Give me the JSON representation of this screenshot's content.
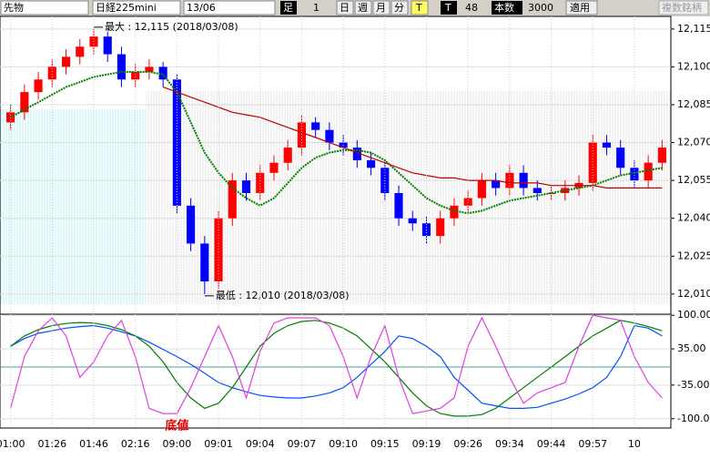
{
  "toolbar": {
    "market": "先物",
    "symbol": "日経225mini",
    "date": "13/06",
    "bar": "足",
    "interval": "1",
    "day": "日",
    "week": "週",
    "month": "月",
    "minute": "分",
    "tick": "T",
    "t2": "T",
    "count_value": "48",
    "count_label": "本数",
    "bars": "3000",
    "apply": "適用",
    "multi": "複数銘柄"
  },
  "chart_data": [
    {
      "type": "candlestick",
      "up_color": "#ff0000",
      "down_color": "#0000ff",
      "open": [
        12078,
        12082,
        12090,
        12095,
        12100,
        12104,
        12108,
        12112,
        12105,
        12095,
        12098,
        12100,
        12095,
        12045,
        12030,
        12015,
        12040,
        12055,
        12050,
        12058,
        12062,
        12068,
        12078,
        12075,
        12070,
        12068,
        12063,
        12060,
        12050,
        12040,
        12038,
        12033,
        12040,
        12045,
        12048,
        12055,
        12052,
        12058,
        12052,
        12050,
        12050,
        12052,
        12054,
        12070,
        12068,
        12060,
        12055,
        12062
      ],
      "high": [
        12085,
        12093,
        12098,
        12103,
        12107,
        12111,
        12115,
        12114,
        12108,
        12101,
        12103,
        12102,
        12097,
        12048,
        12033,
        12043,
        12058,
        12058,
        12061,
        12065,
        12071,
        12081,
        12080,
        12078,
        12073,
        12071,
        12066,
        12063,
        12053,
        12043,
        12041,
        12043,
        12048,
        12051,
        12058,
        12058,
        12061,
        12061,
        12055,
        12053,
        12055,
        12057,
        12073,
        12073,
        12071,
        12063,
        12065,
        12071
      ],
      "low": [
        12075,
        12079,
        12087,
        12092,
        12097,
        12101,
        12105,
        12102,
        12092,
        12092,
        12095,
        12092,
        12042,
        12027,
        12010,
        12012,
        12037,
        12047,
        12047,
        12055,
        12059,
        12065,
        12072,
        12067,
        12065,
        12060,
        12057,
        12047,
        12037,
        12035,
        12030,
        12030,
        12037,
        12042,
        12045,
        12049,
        12049,
        12049,
        12047,
        12047,
        12047,
        12049,
        12051,
        12065,
        12057,
        12052,
        12052,
        12059
      ],
      "close": [
        12082,
        12090,
        12095,
        12100,
        12104,
        12108,
        12112,
        12105,
        12095,
        12098,
        12100,
        12095,
        12045,
        12030,
        12015,
        12040,
        12055,
        12050,
        12058,
        12062,
        12068,
        12078,
        12075,
        12070,
        12068,
        12063,
        12060,
        12050,
        12040,
        12038,
        12033,
        12040,
        12045,
        12048,
        12055,
        12052,
        12058,
        12052,
        12050,
        12050,
        12052,
        12054,
        12070,
        12068,
        12060,
        12055,
        12062,
        12068
      ],
      "series": [
        {
          "color": "#008000",
          "values": [
            12080,
            12083,
            12086,
            12089,
            12092,
            12094,
            12096,
            12097,
            12098,
            12098,
            12098,
            12097,
            12090,
            12078,
            12066,
            12058,
            12052,
            12048,
            12045,
            12048,
            12054,
            12060,
            12064,
            12066,
            12067,
            12067,
            12066,
            12063,
            12058,
            12053,
            12048,
            12045,
            12043,
            12042,
            12043,
            12045,
            12047,
            12048,
            12049,
            12050,
            12051,
            12052,
            12053,
            12055,
            12057,
            12058,
            12059,
            12060
          ]
        },
        {
          "color": "#c00000",
          "values": [
            null,
            null,
            null,
            null,
            null,
            null,
            null,
            null,
            null,
            null,
            null,
            12092,
            12090,
            12088,
            12086,
            12084,
            12082,
            12081,
            12080,
            12078,
            12076,
            12074,
            12072,
            12070,
            12068,
            12066,
            12064,
            12062,
            12060,
            12058,
            12057,
            12056,
            12056,
            12055,
            12055,
            12055,
            12054,
            12054,
            12054,
            12053,
            12053,
            12053,
            12053,
            12052,
            12052,
            12052,
            12052,
            12052
          ]
        }
      ],
      "ylim": [
        12002,
        12120
      ],
      "yticks": [
        {
          "value": 12010,
          "label": "12,010"
        },
        {
          "value": 12025,
          "label": "12,025"
        },
        {
          "value": 12040,
          "label": "12,040"
        },
        {
          "value": 12055,
          "label": "12,055"
        },
        {
          "value": 12070,
          "label": "12,070"
        },
        {
          "value": 12085,
          "label": "12,085"
        },
        {
          "value": 12100,
          "label": "12,100"
        },
        {
          "value": 12115,
          "label": "12,115"
        }
      ],
      "max_label": "最大 : 12,115 (2018/03/08)",
      "min_label": "最低 : 12,010 (2018/03/08)"
    },
    {
      "type": "line",
      "categories": [
        "01:00",
        null,
        null,
        "01:26",
        null,
        null,
        "01:46",
        null,
        null,
        "02:16",
        null,
        null,
        "09:00",
        null,
        null,
        "09:01",
        null,
        null,
        "09:04",
        null,
        null,
        "09:07",
        null,
        null,
        "09:10",
        null,
        null,
        "09:15",
        null,
        null,
        "09:19",
        null,
        null,
        "09:26",
        null,
        null,
        "09:34",
        null,
        null,
        "09:44",
        null,
        null,
        "09:57",
        null,
        null,
        "10",
        null,
        null
      ],
      "series": [
        {
          "color": "#0050ff",
          "values": [
            40,
            55,
            65,
            70,
            75,
            78,
            80,
            75,
            68,
            60,
            48,
            34,
            20,
            5,
            -12,
            -30,
            -40,
            -48,
            -55,
            -58,
            -60,
            -60,
            -56,
            -50,
            -40,
            -20,
            5,
            30,
            60,
            55,
            40,
            20,
            -20,
            -45,
            -70,
            -75,
            -80,
            -80,
            -78,
            -70,
            -62,
            -52,
            -40,
            -20,
            20,
            80,
            75,
            60
          ]
        },
        {
          "color": "#008000",
          "values": [
            40,
            60,
            72,
            80,
            84,
            86,
            85,
            80,
            72,
            60,
            40,
            10,
            -30,
            -60,
            -80,
            -70,
            -40,
            0,
            40,
            65,
            80,
            88,
            90,
            85,
            75,
            60,
            35,
            10,
            -20,
            -50,
            -75,
            -90,
            -95,
            -95,
            -92,
            -80,
            -60,
            -40,
            -20,
            0,
            20,
            40,
            60,
            75,
            90,
            85,
            78,
            70
          ]
        },
        {
          "color": "#e040e0",
          "values": [
            -80,
            20,
            70,
            95,
            60,
            -20,
            10,
            60,
            90,
            20,
            -80,
            -90,
            -90,
            -40,
            20,
            80,
            20,
            -60,
            30,
            85,
            95,
            95,
            95,
            80,
            20,
            -60,
            20,
            80,
            -20,
            -90,
            -85,
            -80,
            -60,
            40,
            95,
            40,
            -20,
            -70,
            -50,
            -40,
            -30,
            40,
            100,
            95,
            90,
            20,
            -30,
            -60
          ]
        }
      ],
      "ylim": [
        -118,
        102
      ],
      "yticks": [
        {
          "value": 100,
          "label": "100.00"
        },
        {
          "value": 35,
          "label": "35.00"
        },
        {
          "value": -35,
          "label": "-35.00"
        },
        {
          "value": -100,
          "label": "-100.00"
        }
      ],
      "annotation": "底値"
    }
  ]
}
